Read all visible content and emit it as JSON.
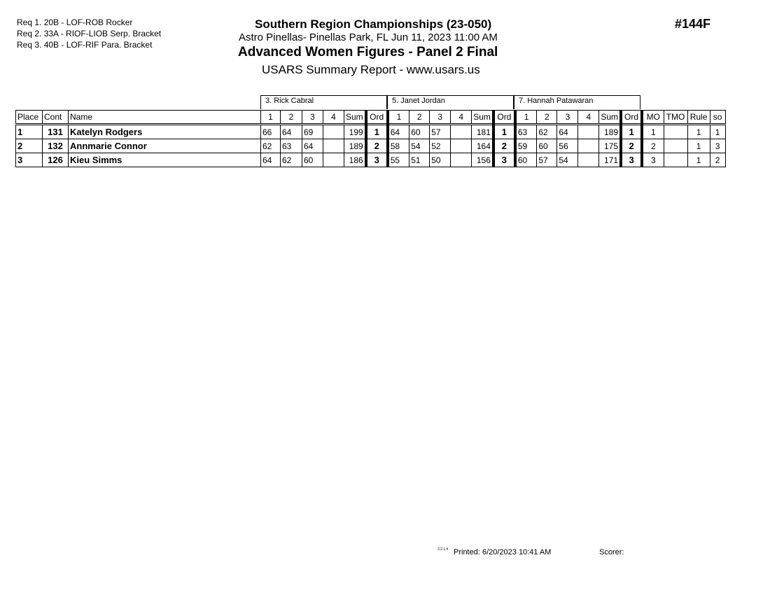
{
  "requirements": [
    "Req  1.  20B - LOF-ROB Rocker",
    "Req  2.  33A - RIOF-LIOB Serp. Bracket",
    "Req  3.  40B - LOF-RIF Para. Bracket"
  ],
  "header": {
    "competition": "Southern Region Championships (23-050)",
    "venue": "Astro Pinellas- Pinellas Park, FL  Jun 11, 2023  11:00 AM",
    "event": "Advanced Women Figures - Panel 2 Final",
    "report": "USARS Summary Report - www.usars.us",
    "event_number": "#144F"
  },
  "judges": [
    "3.  Rick Cabral",
    "5.  Janet Jordan",
    "7.  Hannah Patawaran"
  ],
  "columns": {
    "place": "Place",
    "cont": "Cont",
    "name": "Name",
    "judge_cols": [
      "1",
      "2",
      "3",
      "4",
      "Sum",
      "Ord"
    ],
    "mo": "MO",
    "tmo": "TMO",
    "rule": "Rule",
    "so": "so"
  },
  "rows": [
    {
      "place": "1",
      "cont": "131",
      "name": "Katelyn Rodgers",
      "judges": [
        [
          "66",
          "64",
          "69",
          "",
          "199",
          "1"
        ],
        [
          "64",
          "60",
          "57",
          "",
          "181",
          "1"
        ],
        [
          "63",
          "62",
          "64",
          "",
          "189",
          "1"
        ]
      ],
      "mo": "1",
      "tmo": "",
      "rule": "1",
      "so": "1"
    },
    {
      "place": "2",
      "cont": "132",
      "name": "Annmarie Connor",
      "judges": [
        [
          "62",
          "63",
          "64",
          "",
          "189",
          "2"
        ],
        [
          "58",
          "54",
          "52",
          "",
          "164",
          "2"
        ],
        [
          "59",
          "60",
          "56",
          "",
          "175",
          "2"
        ]
      ],
      "mo": "2",
      "tmo": "",
      "rule": "1",
      "so": "3"
    },
    {
      "place": "3",
      "cont": "126",
      "name": "Kieu Simms",
      "judges": [
        [
          "64",
          "62",
          "60",
          "",
          "186",
          "3"
        ],
        [
          "55",
          "51",
          "50",
          "",
          "156",
          "3"
        ],
        [
          "60",
          "57",
          "54",
          "",
          "171",
          "3"
        ]
      ],
      "mo": "3",
      "tmo": "",
      "rule": "1",
      "so": "2"
    }
  ],
  "footer": {
    "version": "3.2.1.4",
    "printed": "Printed:  6/20/2023  10:41 AM",
    "scorer": "Scorer:"
  }
}
